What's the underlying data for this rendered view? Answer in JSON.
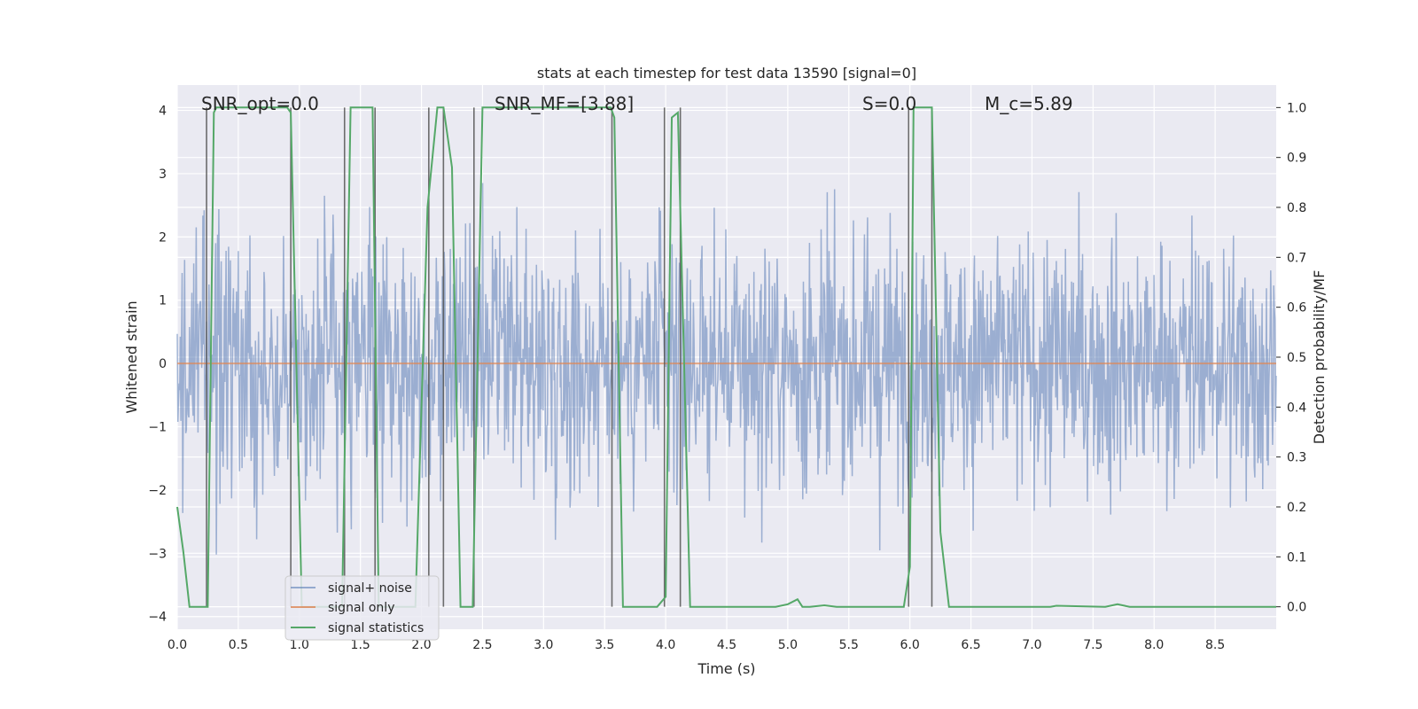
{
  "chart_data": {
    "type": "line",
    "title": "stats at each timestep for test data 13590 [signal=0]",
    "xlabel": "Time (s)",
    "ylabel_left": "Whitened strain",
    "ylabel_right": "Detection probability/MF",
    "xlim": [
      0.0,
      9.0
    ],
    "ylim_left": [
      -4.2,
      4.4
    ],
    "ylim_right": [
      -0.045,
      1.045
    ],
    "x_ticks": [
      "0.0",
      "0.5",
      "1.0",
      "1.5",
      "2.0",
      "2.5",
      "3.0",
      "3.5",
      "4.0",
      "4.5",
      "5.0",
      "5.5",
      "6.0",
      "6.5",
      "7.0",
      "7.5",
      "8.0",
      "8.5"
    ],
    "y_left_ticks": [
      "4",
      "3",
      "2",
      "1",
      "0",
      "−1",
      "−2",
      "−3",
      "−4"
    ],
    "y_right_ticks": [
      "1.0",
      "0.9",
      "0.8",
      "0.7",
      "0.6",
      "0.5",
      "0.4",
      "0.3",
      "0.2",
      "0.1",
      "0.0"
    ],
    "annotations": {
      "snr_opt": "SNR_opt=0.0",
      "snr_mf": "SNR_MF=[3.88]",
      "s": "S=0.0",
      "mc": "M_c=5.89"
    },
    "legend": [
      "signal+ noise",
      "signal only",
      "signal statistics"
    ],
    "colors": {
      "noise": "#4c72b0",
      "signal_only": "#dd8452",
      "statistics": "#55a868",
      "vlines": "#555555",
      "background": "#eaeaf2"
    },
    "noise_series": {
      "name": "signal+ noise",
      "envelope_sigma": 1.0,
      "max_abs": 3.85,
      "samples": 1800,
      "seed": 13590
    },
    "signal_only_series": {
      "name": "signal only",
      "value": 0.0
    },
    "statistics_series": {
      "name": "signal statistics",
      "x": [
        0.0,
        0.05,
        0.1,
        0.25,
        0.3,
        0.32,
        0.9,
        0.93,
        1.02,
        1.35,
        1.42,
        1.6,
        1.65,
        1.95,
        2.05,
        2.13,
        2.18,
        2.25,
        2.32,
        2.38,
        2.42,
        2.5,
        3.55,
        3.58,
        3.65,
        3.93,
        4.0,
        4.05,
        4.1,
        4.2,
        4.3,
        4.9,
        5.0,
        5.08,
        5.12,
        5.18,
        5.3,
        5.4,
        5.5,
        5.95,
        6.0,
        6.03,
        6.08,
        6.1,
        6.18,
        6.25,
        6.32,
        7.15,
        7.2,
        7.6,
        7.7,
        7.8,
        8.0,
        9.0
      ],
      "y": [
        0.2,
        0.11,
        0.0,
        0.0,
        0.99,
        1.0,
        1.0,
        0.99,
        0.0,
        0.0,
        1.0,
        1.0,
        0.0,
        0.0,
        0.8,
        1.0,
        1.0,
        0.88,
        0.0,
        0.0,
        0.0,
        1.0,
        1.0,
        0.98,
        0.0,
        0.0,
        0.02,
        0.98,
        0.99,
        0.0,
        0.0,
        0.0,
        0.005,
        0.015,
        0.0,
        0.0,
        0.003,
        0.0,
        0.0,
        0.0,
        0.08,
        1.0,
        1.0,
        1.0,
        1.0,
        0.15,
        0.0,
        0.0,
        0.002,
        0.0,
        0.005,
        0.0,
        0.0,
        0.0
      ]
    },
    "vlines_x": [
      0.24,
      0.93,
      1.37,
      1.62,
      2.06,
      2.18,
      2.43,
      3.56,
      3.99,
      4.12,
      5.99,
      6.18
    ],
    "grid": true,
    "legend_position": "lower-left"
  }
}
